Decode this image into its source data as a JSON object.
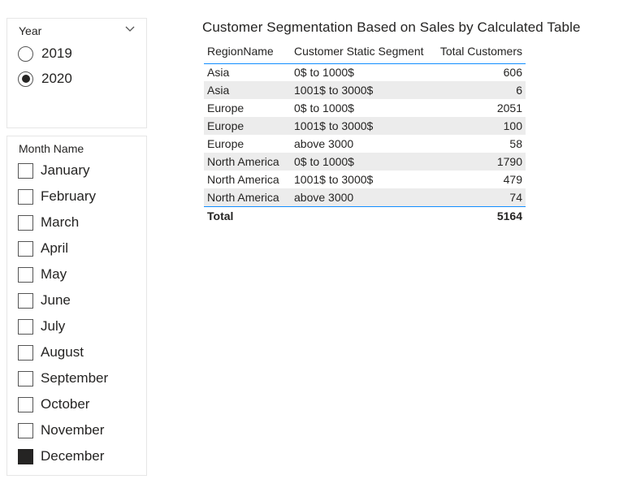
{
  "year_slicer": {
    "header": "Year",
    "options": [
      {
        "label": "2019",
        "selected": false
      },
      {
        "label": "2020",
        "selected": true
      }
    ]
  },
  "month_slicer": {
    "header": "Month Name",
    "options": [
      {
        "label": "January",
        "checked": false
      },
      {
        "label": "February",
        "checked": false
      },
      {
        "label": "March",
        "checked": false
      },
      {
        "label": "April",
        "checked": false
      },
      {
        "label": "May",
        "checked": false
      },
      {
        "label": "June",
        "checked": false
      },
      {
        "label": "July",
        "checked": false
      },
      {
        "label": "August",
        "checked": false
      },
      {
        "label": "September",
        "checked": false
      },
      {
        "label": "October",
        "checked": false
      },
      {
        "label": "November",
        "checked": false
      },
      {
        "label": "December",
        "checked": true
      }
    ]
  },
  "table_visual": {
    "title": "Customer Segmentation Based on Sales by Calculated Table",
    "columns": [
      "RegionName",
      "Customer Static Segment",
      "Total Customers"
    ],
    "rows": [
      [
        "Asia",
        "0$ to 1000$",
        "606"
      ],
      [
        "Asia",
        "1001$ to 3000$",
        "6"
      ],
      [
        "Europe",
        "0$ to 1000$",
        "2051"
      ],
      [
        "Europe",
        "1001$ to 3000$",
        "100"
      ],
      [
        "Europe",
        "above 3000",
        "58"
      ],
      [
        "North America",
        "0$ to 1000$",
        "1790"
      ],
      [
        "North America",
        "1001$ to 3000$",
        "479"
      ],
      [
        "North America",
        "above 3000",
        "74"
      ]
    ],
    "total": {
      "label": "Total",
      "value": "5164"
    }
  },
  "colors": {
    "accent_line": "#118dff",
    "row_banding": "#ececec",
    "text": "#252423"
  }
}
